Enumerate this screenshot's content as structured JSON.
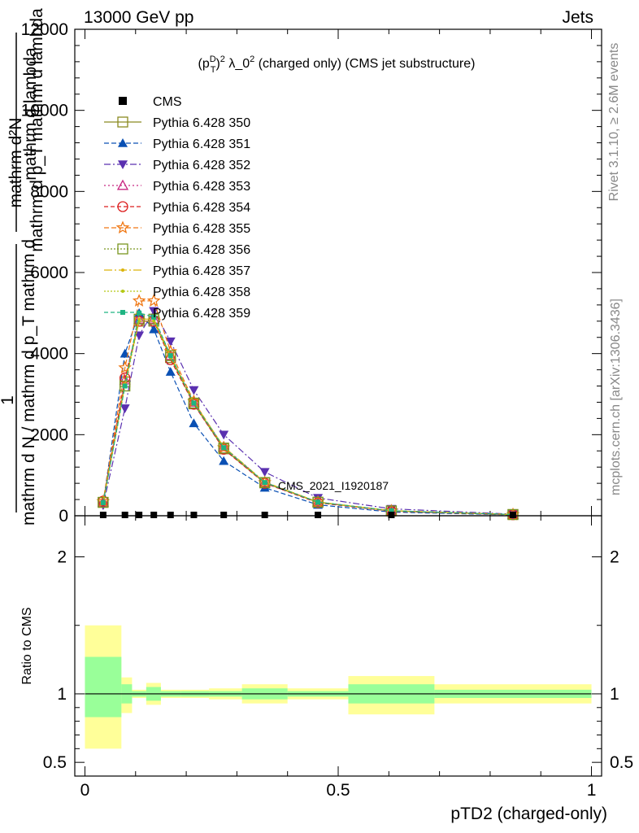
{
  "header": {
    "left": "13000 GeV pp",
    "right": "Jets"
  },
  "side_labels": {
    "rivet": "Rivet 3.1.10, ≥ 2.6M events",
    "mcplots": "mcplots.cern.ch [arXiv:1306.3436]"
  },
  "watermark": "CMS_2021_I1920187",
  "chart_data": [
    {
      "type": "line",
      "title": "(p_T^D)^2 λ_0^2 (charged only) (CMS jet substructure)",
      "title_parts": {
        "pre": "(p",
        "sup1": "D",
        "sub1": "T",
        "mid": ")",
        "sup2": "2",
        "post1": " λ_0",
        "sup3": "2",
        "post2": " (charged only) (CMS jet substructure)"
      },
      "ylabel_numerator": "mathrm d²N",
      "ylabel_denominator": "mathrm d p_T mathrm d lambda",
      "ylabel_one": "1",
      "ylabel_left": "mathrm d N / mathrm d p_T mathrm d",
      "ylabel_extra": "mathrm d lambda",
      "ylim": [
        0,
        12000
      ],
      "y_ticks": [
        "0",
        "2000",
        "4000",
        "6000",
        "8000",
        "10000",
        "12000"
      ],
      "xlim": [
        0,
        1
      ],
      "x": [
        0.036,
        0.079,
        0.107,
        0.136,
        0.169,
        0.215,
        0.274,
        0.355,
        0.46,
        0.605,
        0.845
      ],
      "data": {
        "name": "CMS",
        "values": [
          0,
          0,
          0,
          0,
          0,
          0,
          0,
          0,
          0,
          0,
          0
        ]
      },
      "series": [
        {
          "name": "Pythia 6.428 350",
          "color": "#8a8a20",
          "dash": "",
          "marker": "square-open",
          "values": [
            330,
            3300,
            4800,
            4800,
            3900,
            2760,
            1650,
            810,
            330,
            120,
            30
          ]
        },
        {
          "name": "Pythia 6.428 351",
          "color": "#0a50b4",
          "dash": "6,3",
          "marker": "triangle-up",
          "values": [
            320,
            4000,
            5000,
            4600,
            3550,
            2280,
            1350,
            690,
            270,
            90,
            20
          ]
        },
        {
          "name": "Pythia 6.428 352",
          "color": "#5a30b0",
          "dash": "8,3,2,3",
          "marker": "triangle-down",
          "values": [
            260,
            2650,
            4450,
            5050,
            4300,
            3100,
            2000,
            1080,
            440,
            170,
            40
          ]
        },
        {
          "name": "Pythia 6.428 353",
          "color": "#c82882",
          "dash": "2,3",
          "marker": "triangle-open",
          "values": [
            340,
            3350,
            4850,
            4850,
            3950,
            2800,
            1700,
            830,
            340,
            125,
            30
          ]
        },
        {
          "name": "Pythia 6.428 354",
          "color": "#dc1e1e",
          "dash": "5,3",
          "marker": "circle-open",
          "values": [
            360,
            3400,
            4800,
            4800,
            3850,
            2750,
            1640,
            800,
            320,
            110,
            25
          ]
        },
        {
          "name": "Pythia 6.428 355",
          "color": "#f07814",
          "dash": "6,3",
          "marker": "star-open",
          "values": [
            350,
            3650,
            5300,
            5300,
            4050,
            2820,
            1680,
            820,
            340,
            120,
            30
          ]
        },
        {
          "name": "Pythia 6.428 356",
          "color": "#7a9620",
          "dash": "2,2",
          "marker": "square-open",
          "values": [
            330,
            3200,
            4850,
            4850,
            3950,
            2780,
            1670,
            820,
            335,
            120,
            30
          ]
        },
        {
          "name": "Pythia 6.428 357",
          "color": "#dcb40a",
          "dash": "10,3,2,3",
          "marker": "small-dot",
          "values": [
            320,
            3250,
            4850,
            4850,
            3950,
            2800,
            1700,
            830,
            340,
            125,
            30
          ]
        },
        {
          "name": "Pythia 6.428 358",
          "color": "#b4c814",
          "dash": "2,2",
          "marker": "small-dot",
          "values": [
            320,
            3200,
            4800,
            4800,
            3900,
            2780,
            1680,
            820,
            335,
            122,
            30
          ]
        },
        {
          "name": "Pythia 6.428 359",
          "color": "#1eb482",
          "dash": "5,3",
          "marker": "small-square",
          "values": [
            320,
            3200,
            5000,
            4900,
            3950,
            2780,
            1680,
            820,
            335,
            122,
            30
          ]
        }
      ]
    },
    {
      "type": "area",
      "ylabel": "Ratio to CMS",
      "xlabel": "pTD2 (charged-only)",
      "ylim": [
        0.4,
        2.3
      ],
      "y_ticks": [
        0.5,
        1,
        2
      ],
      "y_tick_labels": [
        "0.5",
        "1",
        "2"
      ],
      "xlim": [
        -0.02,
        1.02
      ],
      "x_ticks": [
        0,
        0.5,
        1
      ],
      "x_tick_labels": [
        "0",
        "0.5",
        "1"
      ],
      "reference": 1,
      "bands": [
        {
          "x0": 0.0,
          "x1": 0.072,
          "yellow": [
            0.6,
            1.5
          ],
          "green": [
            0.83,
            1.27
          ]
        },
        {
          "x0": 0.072,
          "x1": 0.093,
          "yellow": [
            0.86,
            1.12
          ],
          "green": [
            0.93,
            1.07
          ]
        },
        {
          "x0": 0.093,
          "x1": 0.121,
          "yellow": [
            0.97,
            1.03
          ],
          "green": [
            0.98,
            1.02
          ]
        },
        {
          "x0": 0.121,
          "x1": 0.15,
          "yellow": [
            0.92,
            1.08
          ],
          "green": [
            0.95,
            1.05
          ]
        },
        {
          "x0": 0.15,
          "x1": 0.19,
          "yellow": [
            0.97,
            1.03
          ],
          "green": [
            0.98,
            1.02
          ]
        },
        {
          "x0": 0.19,
          "x1": 0.245,
          "yellow": [
            0.97,
            1.03
          ],
          "green": [
            0.98,
            1.02
          ]
        },
        {
          "x0": 0.245,
          "x1": 0.31,
          "yellow": [
            0.96,
            1.04
          ],
          "green": [
            0.98,
            1.02
          ]
        },
        {
          "x0": 0.31,
          "x1": 0.4,
          "yellow": [
            0.93,
            1.07
          ],
          "green": [
            0.96,
            1.04
          ]
        },
        {
          "x0": 0.4,
          "x1": 0.52,
          "yellow": [
            0.96,
            1.04
          ],
          "green": [
            0.98,
            1.02
          ]
        },
        {
          "x0": 0.52,
          "x1": 0.69,
          "yellow": [
            0.85,
            1.13
          ],
          "green": [
            0.93,
            1.07
          ]
        },
        {
          "x0": 0.69,
          "x1": 1.0,
          "yellow": [
            0.93,
            1.07
          ],
          "green": [
            0.97,
            1.03
          ]
        }
      ]
    }
  ]
}
